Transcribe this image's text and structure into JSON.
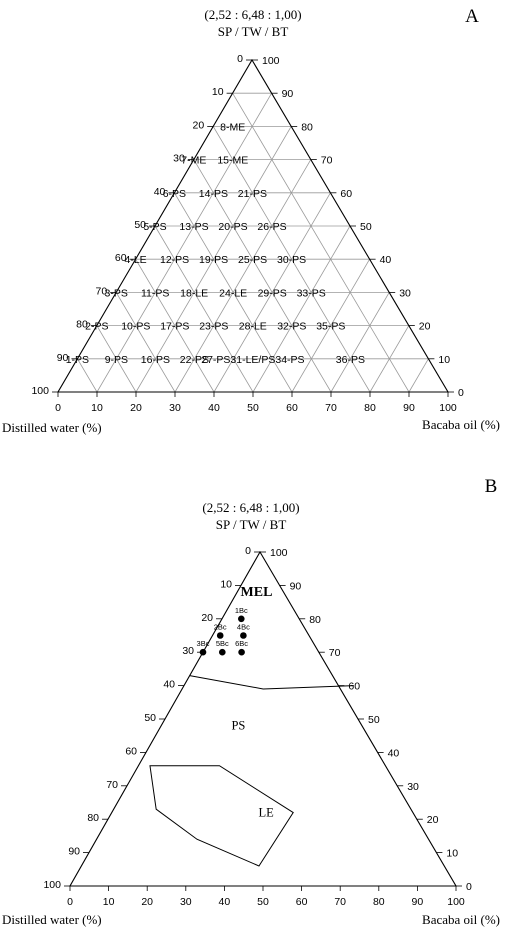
{
  "chart_data": [
    {
      "type": "ternary",
      "panel_letter": "A",
      "ratio_label": "(2,52 : 6,48 : 1,00)",
      "apex_label": "SP / TW / BT",
      "bottom_left_label": "Distilled water (%)",
      "bottom_right_label": "Bacaba oil  (%)",
      "left_axis": {
        "name": "Distilled water",
        "ticks": [
          0,
          10,
          20,
          30,
          40,
          50,
          60,
          70,
          80,
          90,
          100
        ]
      },
      "right_axis": {
        "name": "SP / TW / BT",
        "ticks": [
          100,
          90,
          80,
          70,
          60,
          50,
          40,
          30,
          20,
          10,
          0
        ]
      },
      "bottom_axis": {
        "name": "Bacaba oil",
        "ticks": [
          0,
          10,
          20,
          30,
          40,
          50,
          60,
          70,
          80,
          90,
          100
        ]
      },
      "grid": true,
      "points": [
        {
          "label": "8-ME",
          "oil": 5,
          "smix": 80
        },
        {
          "label": "7-ME",
          "oil": 0,
          "smix": 70
        },
        {
          "label": "15-ME",
          "oil": 10,
          "smix": 70
        },
        {
          "label": "6-PS",
          "oil": 0,
          "smix": 60
        },
        {
          "label": "14-PS",
          "oil": 10,
          "smix": 60
        },
        {
          "label": "21-PS",
          "oil": 20,
          "smix": 60
        },
        {
          "label": "5-PS",
          "oil": 0,
          "smix": 50
        },
        {
          "label": "13-PS",
          "oil": 10,
          "smix": 50
        },
        {
          "label": "20-PS",
          "oil": 20,
          "smix": 50
        },
        {
          "label": "26-PS",
          "oil": 30,
          "smix": 50
        },
        {
          "label": "4-LE",
          "oil": 0,
          "smix": 40
        },
        {
          "label": "12-PS",
          "oil": 10,
          "smix": 40
        },
        {
          "label": "19-PS",
          "oil": 20,
          "smix": 40
        },
        {
          "label": "25-PS",
          "oil": 30,
          "smix": 40
        },
        {
          "label": "30-PS",
          "oil": 40,
          "smix": 40
        },
        {
          "label": "3-PS",
          "oil": 0,
          "smix": 30
        },
        {
          "label": "11-PS",
          "oil": 10,
          "smix": 30
        },
        {
          "label": "18-LE",
          "oil": 20,
          "smix": 30
        },
        {
          "label": "24-LE",
          "oil": 30,
          "smix": 30
        },
        {
          "label": "29-PS",
          "oil": 40,
          "smix": 30
        },
        {
          "label": "33-PS",
          "oil": 50,
          "smix": 30
        },
        {
          "label": "2-PS",
          "oil": 0,
          "smix": 20
        },
        {
          "label": "10-PS",
          "oil": 10,
          "smix": 20
        },
        {
          "label": "17-PS",
          "oil": 20,
          "smix": 20
        },
        {
          "label": "23-PS",
          "oil": 30,
          "smix": 20
        },
        {
          "label": "28-LE",
          "oil": 40,
          "smix": 20
        },
        {
          "label": "32-PS",
          "oil": 50,
          "smix": 20
        },
        {
          "label": "35-PS",
          "oil": 60,
          "smix": 20
        },
        {
          "label": "1-PS",
          "oil": 0,
          "smix": 10
        },
        {
          "label": "9-PS",
          "oil": 10,
          "smix": 10
        },
        {
          "label": "16-PS",
          "oil": 20,
          "smix": 10
        },
        {
          "label": "22-PS",
          "oil": 30,
          "smix": 10
        },
        {
          "label": "27-PS31-LE/PS34-PS",
          "oil": 45,
          "smix": 10
        },
        {
          "label": "36-PS",
          "oil": 70,
          "smix": 10
        }
      ]
    },
    {
      "type": "ternary",
      "panel_letter": "B",
      "ratio_label": "(2,52 : 6,48 : 1,00)",
      "apex_label": "SP / TW / BT",
      "bottom_left_label": "Distilled water (%)",
      "bottom_right_label": "Bacaba oil  (%)",
      "left_axis": {
        "name": "Distilled water",
        "ticks": [
          0,
          10,
          20,
          30,
          40,
          50,
          60,
          70,
          80,
          90,
          100
        ]
      },
      "right_axis": {
        "name": "SP / TW / BT",
        "ticks": [
          100,
          90,
          80,
          70,
          60,
          50,
          40,
          30,
          20,
          10,
          0
        ]
      },
      "bottom_axis": {
        "name": "Bacaba oil",
        "ticks": [
          0,
          10,
          20,
          30,
          40,
          50,
          60,
          70,
          80,
          90,
          100
        ]
      },
      "grid": false,
      "region_labels": [
        {
          "label": "MEL",
          "oil": 5,
          "smix": 88
        },
        {
          "label": "PS",
          "oil": 20,
          "smix": 48
        },
        {
          "label": "LE",
          "oil": 40,
          "smix": 22
        }
      ],
      "boundaries": [
        {
          "name": "MEL/PS",
          "points": [
            [
              0,
              63
            ],
            [
              21,
              59
            ],
            [
              44,
              60
            ]
          ]
        },
        {
          "name": "LE",
          "closed": true,
          "points": [
            [
              3,
              36
            ],
            [
              21,
              36
            ],
            [
              47,
              22
            ],
            [
              46,
              6
            ],
            [
              26,
              14
            ],
            [
              11,
              23
            ]
          ]
        }
      ],
      "samples": [
        {
          "label": "1Bc",
          "oil": 5,
          "smix": 80
        },
        {
          "label": "2Bc",
          "oil": 2,
          "smix": 75
        },
        {
          "label": "4Bc",
          "oil": 8,
          "smix": 75
        },
        {
          "label": "3Bc",
          "oil": 0,
          "smix": 70
        },
        {
          "label": "5Bc",
          "oil": 5,
          "smix": 70
        },
        {
          "label": "6Bc",
          "oil": 10,
          "smix": 70
        }
      ]
    }
  ]
}
